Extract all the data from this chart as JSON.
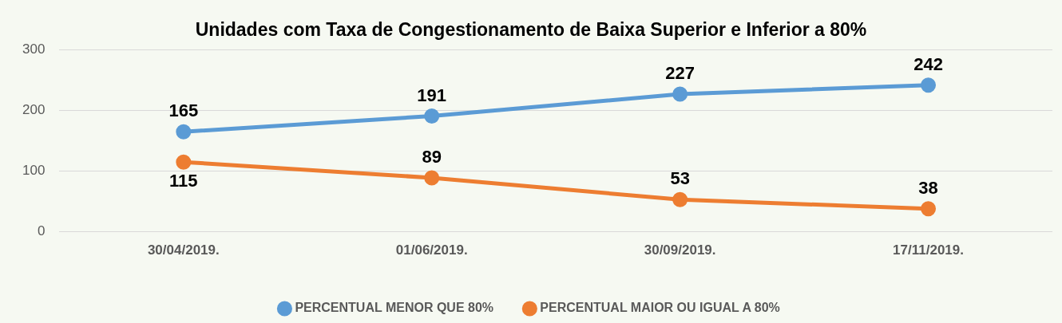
{
  "chart_data": {
    "type": "line",
    "title": "Unidades com Taxa de Congestionamento de Baixa Superior e Inferior a 80%",
    "categories": [
      "30/04/2019.",
      "01/06/2019.",
      "30/09/2019.",
      "17/11/2019."
    ],
    "series": [
      {
        "name": "PERCENTUAL MENOR QUE 80%",
        "color": "#5b9bd5",
        "values": [
          165,
          191,
          227,
          242
        ]
      },
      {
        "name": "PERCENTUAL MAIOR OU IGUAL A 80%",
        "color": "#ed7d31",
        "values": [
          115,
          89,
          53,
          38
        ]
      }
    ],
    "ylim": [
      0,
      300
    ],
    "yticks": [
      0,
      100,
      200,
      300
    ],
    "grid": "y",
    "legend": "bottom",
    "marker": "circle",
    "line_style": "solid",
    "data_labels": true
  }
}
